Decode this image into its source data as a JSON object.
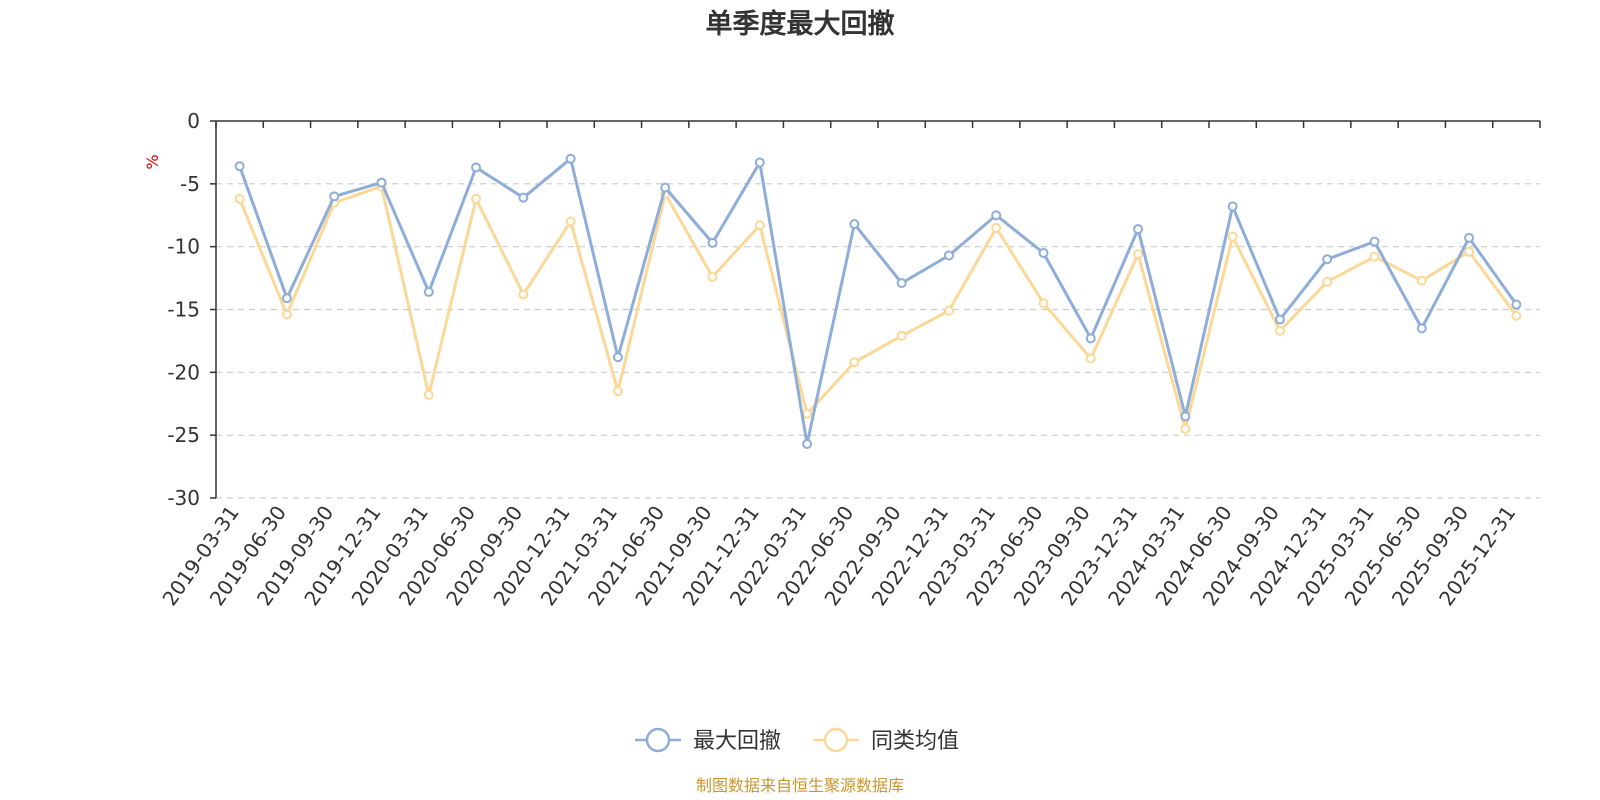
{
  "chart_data": {
    "type": "line",
    "title": "单季度最大回撤",
    "ylabel": "%",
    "ylim": [
      -30,
      0
    ],
    "yticks": [
      0,
      -5,
      -10,
      -15,
      -20,
      -25,
      -30
    ],
    "grid": true,
    "legend_position": "bottom-center",
    "categories": [
      "2019-03-31",
      "2019-06-30",
      "2019-09-30",
      "2019-12-31",
      "2020-03-31",
      "2020-06-30",
      "2020-09-30",
      "2020-12-31",
      "2021-03-31",
      "2021-06-30",
      "2021-09-30",
      "2021-12-31",
      "2022-03-31",
      "2022-06-30",
      "2022-09-30",
      "2022-12-31",
      "2023-03-31",
      "2023-06-30",
      "2023-09-30",
      "2023-12-31",
      "2024-03-31",
      "2024-06-30",
      "2024-09-30",
      "2024-12-31",
      "2025-03-31",
      "2025-06-30",
      "2025-09-30",
      "2025-12-31"
    ],
    "series": [
      {
        "name": "最大回撤",
        "color": "#8eadd9",
        "values": [
          -3.6,
          -14.1,
          -6.0,
          -4.9,
          -13.6,
          -3.7,
          -6.1,
          -3.0,
          -18.8,
          -5.3,
          -9.7,
          -3.3,
          -25.7,
          -8.2,
          -12.9,
          -10.7,
          -7.5,
          -10.5,
          -17.3,
          -8.6,
          -23.5,
          -6.8,
          -15.8,
          -11.0,
          -9.6,
          -16.5,
          -9.3,
          -14.6
        ]
      },
      {
        "name": "同类均值",
        "color": "#fbd898",
        "values": [
          -6.2,
          -15.4,
          -6.5,
          -5.2,
          -21.8,
          -6.2,
          -13.8,
          -8.0,
          -21.5,
          -5.8,
          -12.4,
          -8.3,
          -23.3,
          -19.2,
          -17.1,
          -15.1,
          -8.5,
          -14.5,
          -18.9,
          -10.6,
          -24.5,
          -9.2,
          -16.7,
          -12.8,
          -10.8,
          -12.7,
          -10.4,
          -15.5
        ]
      }
    ]
  },
  "footer": {
    "source": "制图数据来自恒生聚源数据库"
  }
}
